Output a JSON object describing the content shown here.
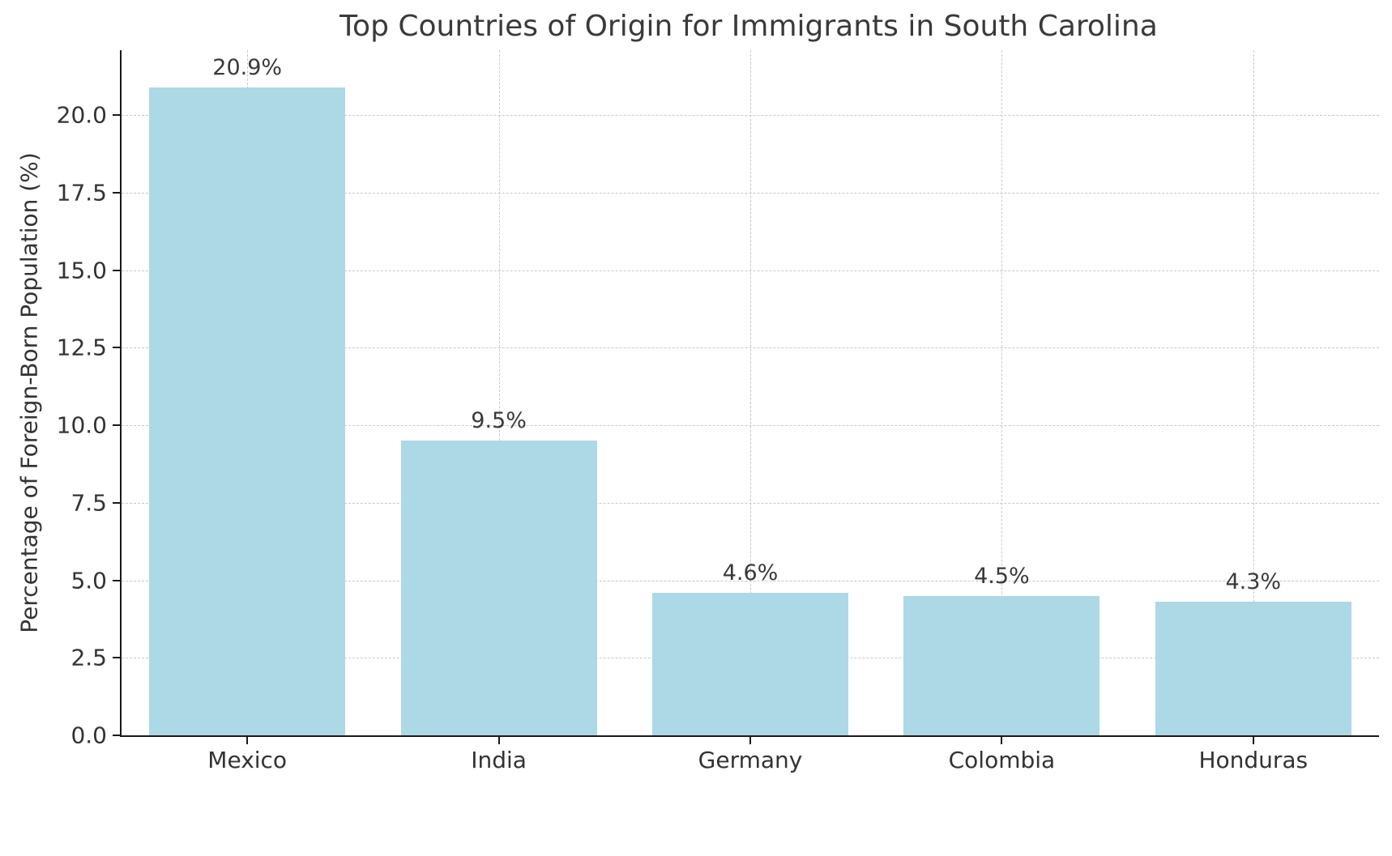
{
  "chart_data": {
    "type": "bar",
    "title": "Top Countries of Origin for Immigrants in South Carolina",
    "xlabel": "",
    "ylabel": "Percentage of Foreign-Born Population (%)",
    "categories": [
      "Mexico",
      "India",
      "Germany",
      "Colombia",
      "Honduras"
    ],
    "values": [
      20.9,
      9.5,
      4.6,
      4.5,
      4.3
    ],
    "value_labels": [
      "20.9%",
      "9.5%",
      "4.6%",
      "4.5%",
      "4.3%"
    ],
    "yticks": [
      0.0,
      2.5,
      5.0,
      7.5,
      10.0,
      12.5,
      15.0,
      17.5,
      20.0
    ],
    "ytick_labels": [
      "0.0",
      "2.5",
      "5.0",
      "7.5",
      "10.0",
      "12.5",
      "15.0",
      "17.5",
      "20.0"
    ],
    "ylim": [
      0,
      22.1
    ],
    "grid": "dashed, horizontal and vertical",
    "legend": null,
    "bar_color": "#ADD8E6",
    "bar_width_fraction": 0.78,
    "axis_color": "#1a1a1a",
    "text_color": "#333333",
    "background_color": "#ffffff"
  }
}
